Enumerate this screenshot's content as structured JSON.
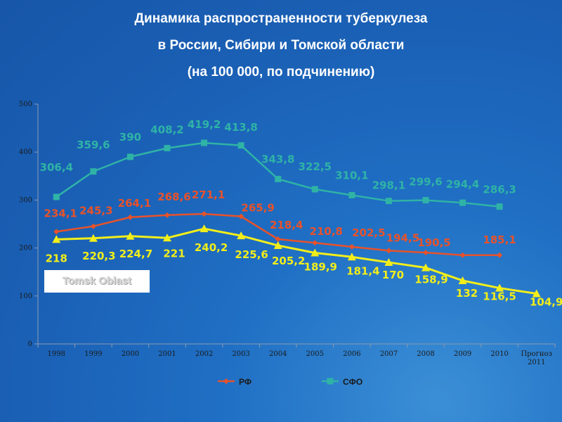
{
  "title_lines": [
    "Динамика распространенности туберкулеза",
    "в России, Сибири и Томской области",
    "(на 100 000, по подчинению)"
  ],
  "annotation": "Tomsk Oblast",
  "chart_data": {
    "type": "line",
    "categories": [
      "1998",
      "1999",
      "2000",
      "2001",
      "2002",
      "2003",
      "2004",
      "2005",
      "2006",
      "2007",
      "2008",
      "2009",
      "2010",
      "Прогноз 2011"
    ],
    "ylim": [
      0,
      500
    ],
    "yticks": [
      0,
      100,
      200,
      300,
      400,
      500
    ],
    "grid": false,
    "legend_position": "bottom",
    "series": [
      {
        "name": "СФО",
        "color": "#2fb3a6",
        "marker": "square",
        "values": [
          306.4,
          359.6,
          390,
          408.2,
          419.2,
          413.8,
          343.8,
          322.5,
          310.1,
          298.1,
          299.6,
          294.4,
          286.3,
          null
        ],
        "labels": [
          "306,4",
          "359,6",
          "390",
          "408,2",
          "419,2",
          "413,8",
          "343,8",
          "322,5",
          "310,1",
          "298,1",
          "299,6",
          "294,4",
          "286,3",
          ""
        ]
      },
      {
        "name": "РФ",
        "color": "#e8522a",
        "marker": "diamond",
        "values": [
          234.1,
          245.3,
          264.1,
          268.6,
          271.1,
          265.9,
          218.4,
          210.8,
          202.5,
          194.5,
          190.5,
          185.1,
          185.1,
          null
        ],
        "labels": [
          "234,1",
          "245,3",
          "264,1",
          "268,6",
          "271,1",
          "265,9",
          "218,4",
          "210,8",
          "202,5",
          "194,5",
          "190,5",
          "",
          "185,1",
          ""
        ]
      },
      {
        "name": "",
        "color": "#f2ee1a",
        "marker": "triangle",
        "values": [
          218,
          220.3,
          224.7,
          221,
          240.2,
          225.6,
          205.2,
          189.9,
          181.4,
          170,
          158.9,
          132,
          116.5,
          104.9
        ],
        "labels": [
          "218",
          "220,3",
          "224,7",
          "221",
          "240,2",
          "225,6",
          "205,2",
          "189,9",
          "181,4",
          "170",
          "158,9",
          "132",
          "116,5",
          "104,9"
        ]
      }
    ],
    "legend": [
      {
        "name": "РФ",
        "color": "#e8522a",
        "marker": "diamond"
      },
      {
        "name": "СФО",
        "color": "#2fb3a6",
        "marker": "square"
      }
    ]
  }
}
